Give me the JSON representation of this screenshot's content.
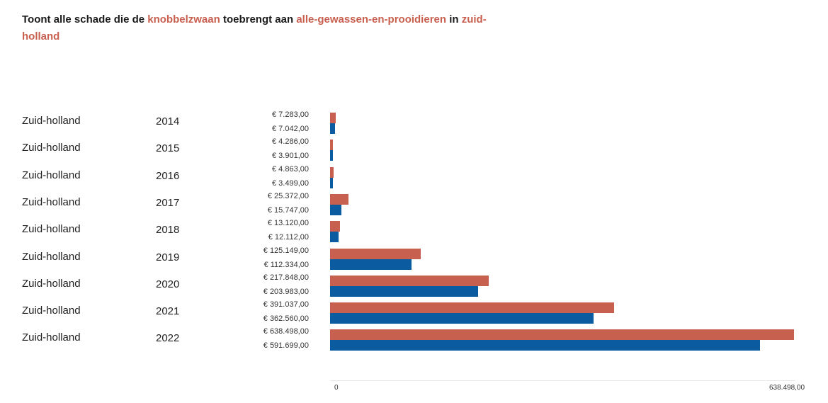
{
  "title": {
    "prefix": "Toont alle schade die de ",
    "species": "knobbelzwaan",
    "middle": " toebrengt aan ",
    "crop": "alle-gewassen-en-prooidieren",
    "in_word": " in ",
    "region": "zuid-holland"
  },
  "colors": {
    "series_a": "#c8604f",
    "series_b": "#0b5ba1",
    "highlight": "#c8604f"
  },
  "axis": {
    "min_label": "0",
    "max_label": "638.498,00"
  },
  "chart_data": {
    "type": "bar",
    "orientation": "horizontal",
    "categories": [
      "2014",
      "2015",
      "2016",
      "2017",
      "2018",
      "2019",
      "2020",
      "2021",
      "2022"
    ],
    "row_labels": [
      "Zuid-holland",
      "Zuid-holland",
      "Zuid-holland",
      "Zuid-holland",
      "Zuid-holland",
      "Zuid-holland",
      "Zuid-holland",
      "Zuid-holland",
      "Zuid-holland"
    ],
    "series": [
      {
        "values": [
          7283,
          4286,
          4863,
          25372,
          13120,
          125149,
          217848,
          391037,
          638498
        ],
        "labels": [
          "€ 7.283,00",
          "€ 4.286,00",
          "€ 4.863,00",
          "€ 25.372,00",
          "€ 13.120,00",
          "€ 125.149,00",
          "€ 217.848,00",
          "€ 391.037,00",
          "€ 638.498,00"
        ]
      },
      {
        "values": [
          7042,
          3901,
          3499,
          15747,
          12112,
          112334,
          203983,
          362560,
          591699
        ],
        "labels": [
          "€ 7.042,00",
          "€ 3.901,00",
          "€ 3.499,00",
          "€ 15.747,00",
          "€ 12.112,00",
          "€ 112.334,00",
          "€ 203.983,00",
          "€ 362.560,00",
          "€ 591.699,00"
        ]
      }
    ],
    "xlim": [
      0,
      638498
    ],
    "grid": false,
    "legend": "none"
  }
}
